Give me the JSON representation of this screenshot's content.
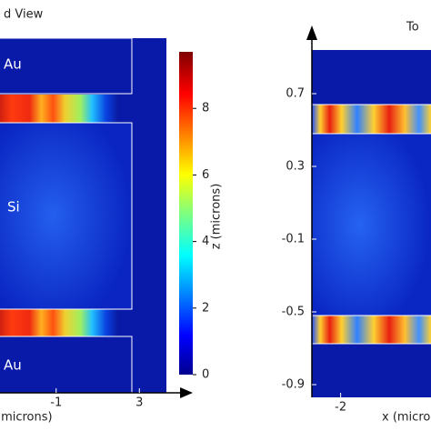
{
  "chart_data": [
    {
      "type": "heatmap",
      "title": "d View",
      "annotations": [
        "Au",
        "Si",
        "Au"
      ],
      "xlabel": "(microns)",
      "xlim": [
        -3.7,
        4.3
      ],
      "xticks": [
        -1,
        3
      ],
      "colorbar": {
        "label": "z (microns)",
        "lim": [
          0,
          9.7
        ],
        "ticks": [
          0,
          2,
          4,
          6,
          8
        ]
      }
    },
    {
      "type": "heatmap",
      "title": "To",
      "xlabel": "x (microns)",
      "xlim": [
        -2.35,
        -0.9
      ],
      "xticks": [
        -2
      ],
      "ylim": [
        -0.97,
        0.94
      ],
      "yticks": [
        0.7,
        0.3,
        -0.1,
        -0.5,
        -0.9
      ]
    }
  ]
}
